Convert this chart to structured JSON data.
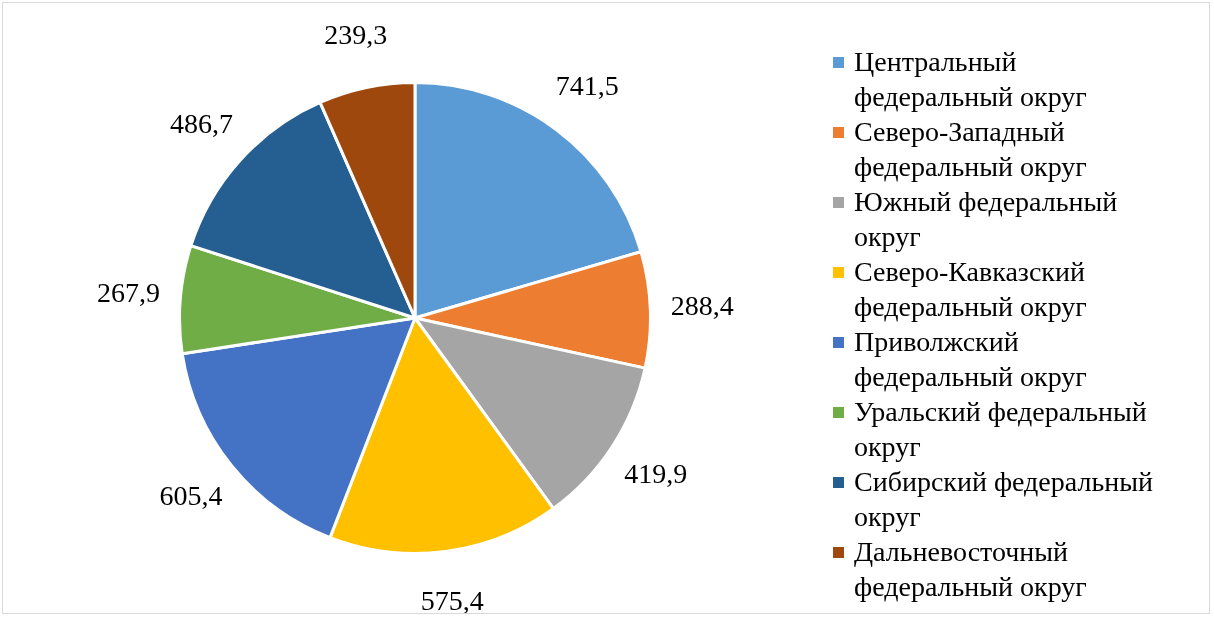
{
  "chart_data": {
    "type": "pie",
    "categories": [
      "Центральный федеральный округ",
      "Северо-Западный федеральный округ",
      "Южный федеральный округ",
      "Северо-Кавказский федеральный округ",
      "Приволжский федеральный округ",
      "Уральский федеральный округ",
      "Сибирский федеральный округ",
      "Дальневосточный федеральный округ"
    ],
    "values": [
      741.5,
      288.4,
      419.9,
      575.4,
      605.4,
      267.9,
      486.7,
      239.3
    ],
    "colors": [
      "#5b9bd5",
      "#ed7d31",
      "#a5a5a5",
      "#ffc000",
      "#4472c4",
      "#70ad47",
      "#255e91",
      "#9e480e"
    ],
    "value_labels": [
      "741,5",
      "288,4",
      "419,9",
      "575,4",
      "605,4",
      "267,9",
      "486,7",
      "239,3"
    ],
    "legend": "right"
  }
}
